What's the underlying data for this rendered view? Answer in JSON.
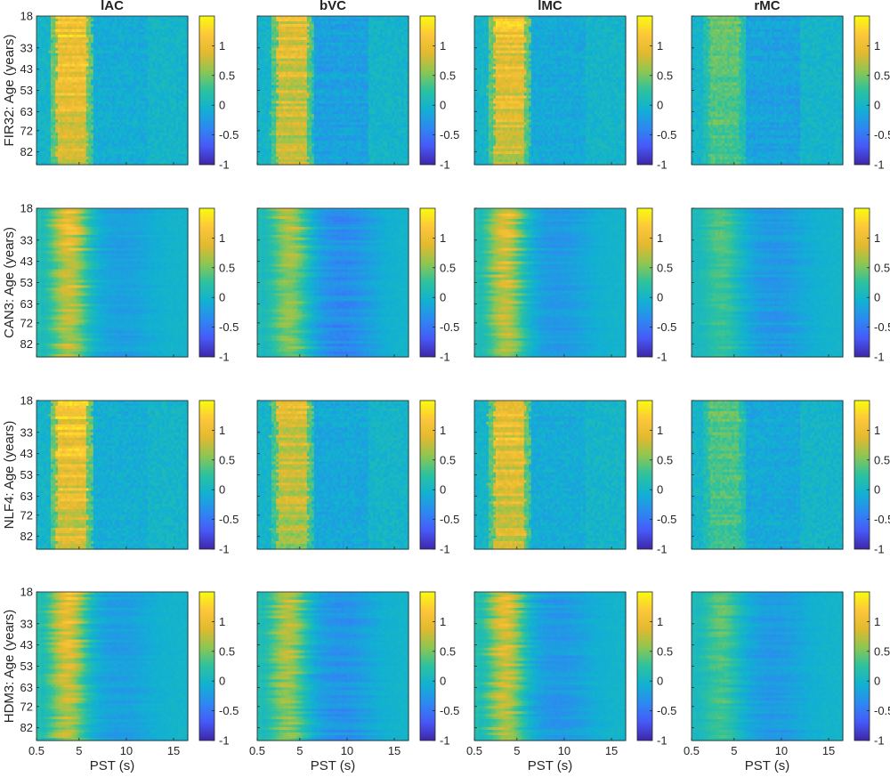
{
  "chart_data": {
    "type": "heatmap",
    "columns": [
      "lAC",
      "bVC",
      "lMC",
      "rMC"
    ],
    "rows": [
      {
        "model": "FIR32",
        "ylabel": "FIR32: Age (years)"
      },
      {
        "model": "CAN3",
        "ylabel": "CAN3: Age (years)"
      },
      {
        "model": "NLF4",
        "ylabel": "NLF4: Age (years)"
      },
      {
        "model": "HDM3",
        "ylabel": "HDM3: Age (years)"
      }
    ],
    "xlabel": "PST (s)",
    "xlim": [
      0.5,
      16.5
    ],
    "xticks": [
      0.5,
      5,
      10,
      15
    ],
    "xtick_labels": [
      "0.5",
      "5",
      "10",
      "15"
    ],
    "ylim": [
      18,
      88
    ],
    "yticks": [
      18,
      33,
      43,
      53,
      63,
      72,
      82
    ],
    "ytick_labels": [
      "18",
      "33",
      "43",
      "53",
      "63",
      "72",
      "82"
    ],
    "clim": [
      -1,
      1.5
    ],
    "cbar_ticks": [
      -1,
      -0.5,
      0,
      0.5,
      1
    ],
    "cbar_tick_labels": [
      "-1",
      "-0.5",
      "0",
      "0.5",
      "1"
    ],
    "colormap": "parula",
    "colormap_stops": [
      "#3e26a8",
      "#4659f7",
      "#2d89f1",
      "#11b1d2",
      "#2cc29f",
      "#8cc652",
      "#e2b92f",
      "#fdc73a",
      "#f9fb0e"
    ],
    "background_color": "#25a6e0",
    "peak_time_s": [
      [
        4.2,
        4.2,
        4.2,
        4.0
      ],
      [
        4.0,
        4.0,
        3.8,
        3.8
      ],
      [
        4.2,
        4.2,
        4.2,
        4.0
      ],
      [
        3.8,
        3.8,
        3.8,
        3.6
      ]
    ],
    "peak_amplitude": [
      [
        1.15,
        0.95,
        1.05,
        0.45
      ],
      [
        1.0,
        0.75,
        0.95,
        0.4
      ],
      [
        1.15,
        0.9,
        1.05,
        0.4
      ],
      [
        1.0,
        0.8,
        0.95,
        0.45
      ]
    ],
    "undershoot_amplitude": [
      [
        -0.15,
        -0.3,
        -0.2,
        -0.3
      ],
      [
        -0.2,
        -0.35,
        -0.25,
        -0.25
      ],
      [
        -0.12,
        -0.2,
        -0.15,
        -0.2
      ],
      [
        -0.2,
        -0.3,
        -0.25,
        -0.25
      ]
    ],
    "age_trend": "response amplitude decreases with age"
  }
}
